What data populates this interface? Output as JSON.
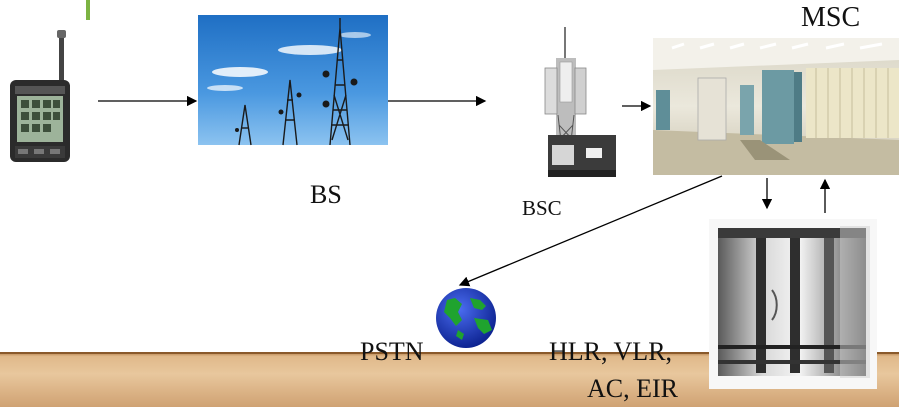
{
  "labels": {
    "msc": "MSC",
    "bs": "BS",
    "bsc": "BSC",
    "pstn": "PSTN",
    "hlr_vlr": "HLR, VLR,",
    "ac_eir": "AC, EIR"
  },
  "icons": {
    "mobile_phone": "mobile-phone-icon",
    "bs_towers": "radio-towers-image",
    "bsc_antenna": "bsc-antenna-image",
    "msc_room": "switching-center-room-image",
    "database_server": "database-server-image",
    "pstn_globe": "globe-icon"
  },
  "colors": {
    "accent": "#7cb342",
    "floor": "#e0b98a",
    "arrow": "#000000",
    "sky": "#2d7fd0"
  }
}
